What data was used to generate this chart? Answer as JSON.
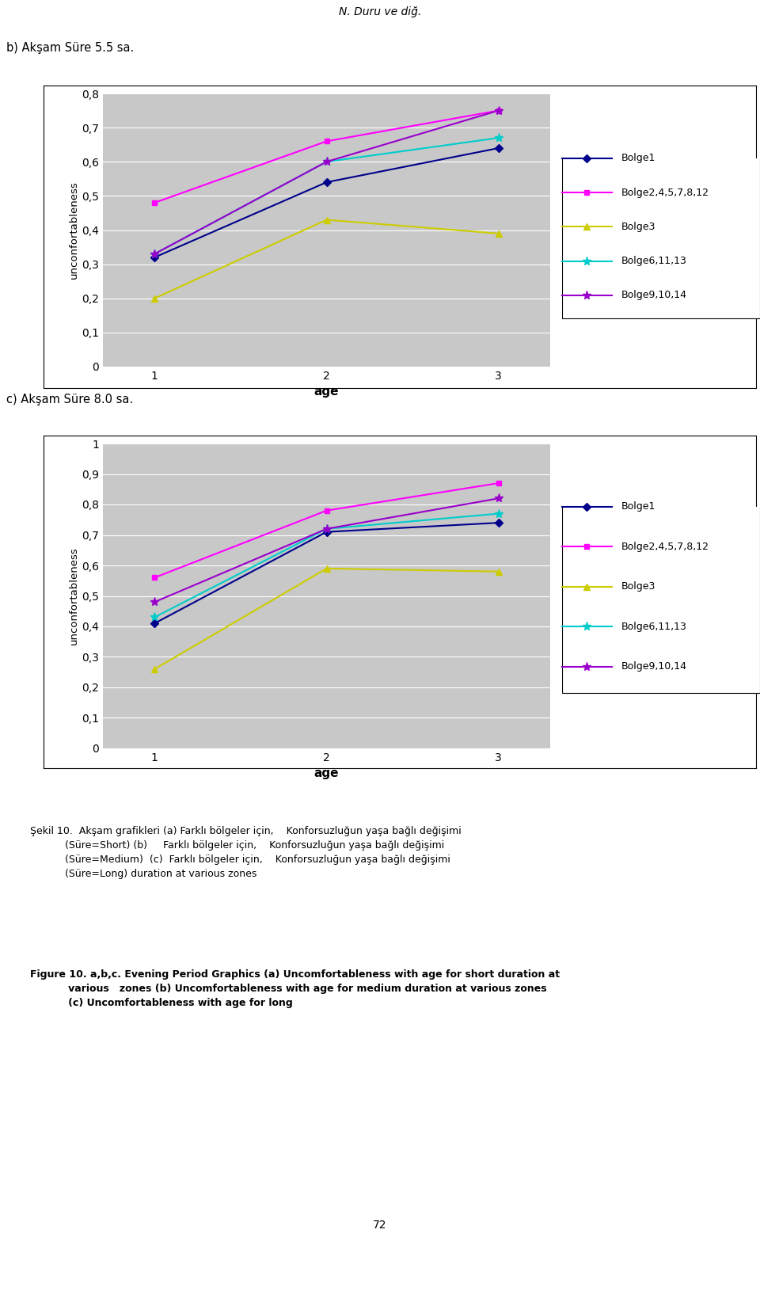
{
  "header_text": "N. Duru ve diğ.",
  "label_b": "b) Akşam Süre 5.5 sa.",
  "label_c": "c) Akşam Süre 8.0 sa.",
  "xlabel": "age",
  "ylabel": "unconfortableness",
  "x": [
    1,
    2,
    3
  ],
  "chart_b": {
    "ylim": [
      0,
      0.8
    ],
    "yticks": [
      0,
      0.1,
      0.2,
      0.3,
      0.4,
      0.5,
      0.6,
      0.7,
      0.8
    ],
    "ytick_labels": [
      "0",
      "0,1",
      "0,2",
      "0,3",
      "0,4",
      "0,5",
      "0,6",
      "0,7",
      "0,8"
    ],
    "series": {
      "Bolge1": {
        "y": [
          0.32,
          0.54,
          0.64
        ],
        "color": "#00008B",
        "marker": "D",
        "ms": 5
      },
      "Bolge2,4,5,7,8,12": {
        "y": [
          0.48,
          0.66,
          0.75
        ],
        "color": "#FF00FF",
        "marker": "s",
        "ms": 5
      },
      "Bolge3": {
        "y": [
          0.2,
          0.43,
          0.39
        ],
        "color": "#CCCC00",
        "marker": "^",
        "ms": 6
      },
      "Bolge6,11,13": {
        "y": [
          0.33,
          0.6,
          0.67
        ],
        "color": "#00CCCC",
        "marker": "*",
        "ms": 8
      },
      "Bolge9,10,14": {
        "y": [
          0.33,
          0.6,
          0.75
        ],
        "color": "#9900CC",
        "marker": "*",
        "ms": 8
      }
    }
  },
  "chart_c": {
    "ylim": [
      0,
      1.0
    ],
    "yticks": [
      0,
      0.1,
      0.2,
      0.3,
      0.4,
      0.5,
      0.6,
      0.7,
      0.8,
      0.9,
      1.0
    ],
    "ytick_labels": [
      "0",
      "0,1",
      "0,2",
      "0,3",
      "0,4",
      "0,5",
      "0,6",
      "0,7",
      "0,8",
      "0,9",
      "1"
    ],
    "series": {
      "Bolge1": {
        "y": [
          0.41,
          0.71,
          0.74
        ],
        "color": "#00008B",
        "marker": "D",
        "ms": 5
      },
      "Bolge2,4,5,7,8,12": {
        "y": [
          0.56,
          0.78,
          0.87
        ],
        "color": "#FF00FF",
        "marker": "s",
        "ms": 5
      },
      "Bolge3": {
        "y": [
          0.26,
          0.59,
          0.58
        ],
        "color": "#CCCC00",
        "marker": "^",
        "ms": 6
      },
      "Bolge6,11,13": {
        "y": [
          0.43,
          0.72,
          0.77
        ],
        "color": "#00CCCC",
        "marker": "*",
        "ms": 8
      },
      "Bolge9,10,14": {
        "y": [
          0.48,
          0.72,
          0.82
        ],
        "color": "#9900CC",
        "marker": "*",
        "ms": 8
      }
    }
  },
  "legend_order": [
    "Bolge1",
    "Bolge2,4,5,7,8,12",
    "Bolge3",
    "Bolge6,11,13",
    "Bolge9,10,14"
  ],
  "plot_bg": "#C8C8C8",
  "box_bg": "#FFFFFF",
  "footer_sekil": "Şekil 10.  Akşam grafikleri (a) Farklı bölgeler için,    Konforsuzluğun yaşa bağlı değişimi\n           (Süre=Short) (b)     Farklı bölgeler için,    Konforsuzluğun yaşa bağlı değişimi\n           (Süre=Medium)  (c)  Farklı bölgeler için,    Konforsuzluğun yaşa bağlı değişimi\n           (Süre=Long) duration at various zones",
  "footer_figure": "Figure 10. a,b,c. Evening Period Graphics (a) Uncomfortableness with age for short duration at\n           various   zones (b) Uncomfortableness with age for medium duration at various zones\n           (c) Uncomfortableness with age for long",
  "page_number": "72"
}
